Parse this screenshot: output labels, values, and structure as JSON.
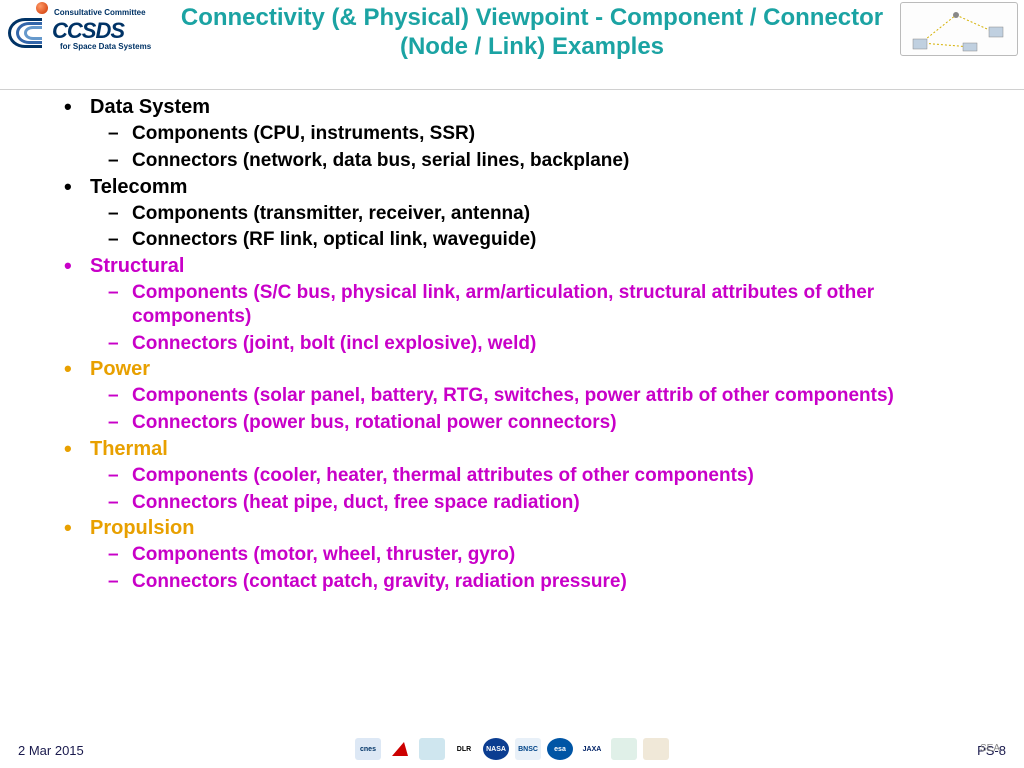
{
  "header": {
    "logo": {
      "line1": "Consultative Committee",
      "acronym": "CCSDS",
      "line2": "for Space Data Systems"
    },
    "title": "Connectivity (& Physical) Viewpoint - Component / Connector (Node / Link) Examples"
  },
  "colors": {
    "title_color": "#1ba3a3",
    "black": "#000000",
    "magenta": "#c800c8",
    "orange": "#e8a000"
  },
  "sections": [
    {
      "label": "Data System",
      "label_color": "black",
      "item_color": "black",
      "items": [
        "Components (CPU, instruments, SSR)",
        "Connectors (network, data bus, serial lines, backplane)"
      ]
    },
    {
      "label": "Telecomm",
      "label_color": "black",
      "item_color": "black",
      "items": [
        "Components (transmitter, receiver, antenna)",
        "Connectors (RF link, optical link, waveguide)"
      ]
    },
    {
      "label": "Structural",
      "label_color": "magenta",
      "item_color": "magenta",
      "items": [
        "Components (S/C bus, physical link, arm/articulation, structural attributes of other components)",
        "Connectors (joint, bolt (incl explosive), weld)"
      ]
    },
    {
      "label": "Power",
      "label_color": "orange",
      "item_color": "magenta",
      "items": [
        "Components (solar panel, battery, RTG, switches, power attrib of other components)",
        "Connectors (power bus, rotational power connectors)"
      ]
    },
    {
      "label": "Thermal",
      "label_color": "orange",
      "item_color": "magenta",
      "items": [
        "Components (cooler, heater, thermal attributes of other components)",
        "Connectors (heat pipe, duct, free space radiation)"
      ]
    },
    {
      "label": "Propulsion",
      "label_color": "orange",
      "item_color": "magenta",
      "items": [
        "Components (motor, wheel, thruster, gyro)",
        "Connectors (contact patch, gravity, radiation pressure)"
      ]
    }
  ],
  "footer": {
    "date": "2 Mar 2015",
    "right_label": "PS-8",
    "right_overlay": "SEA",
    "agencies": [
      {
        "label": "cnes",
        "bg": "#dde8f5",
        "fg": "#003366"
      },
      {
        "label": "",
        "bg": "#ffffff",
        "fg": "#cc0000",
        "shape": "tri"
      },
      {
        "label": "",
        "bg": "#cfe6ef",
        "fg": "#666"
      },
      {
        "label": "DLR",
        "bg": "#fff",
        "fg": "#000"
      },
      {
        "label": "NASA",
        "bg": "#0b3d91",
        "fg": "#fff",
        "round": true
      },
      {
        "label": "BNSC",
        "bg": "#e8f0f8",
        "fg": "#004488"
      },
      {
        "label": "esa",
        "bg": "#0055a5",
        "fg": "#fff",
        "round": true
      },
      {
        "label": "JAXA",
        "bg": "#fff",
        "fg": "#002266"
      },
      {
        "label": "",
        "bg": "#e0f0e8",
        "fg": "#336633"
      },
      {
        "label": "",
        "bg": "#f0e8d8",
        "fg": "#665533"
      }
    ]
  }
}
